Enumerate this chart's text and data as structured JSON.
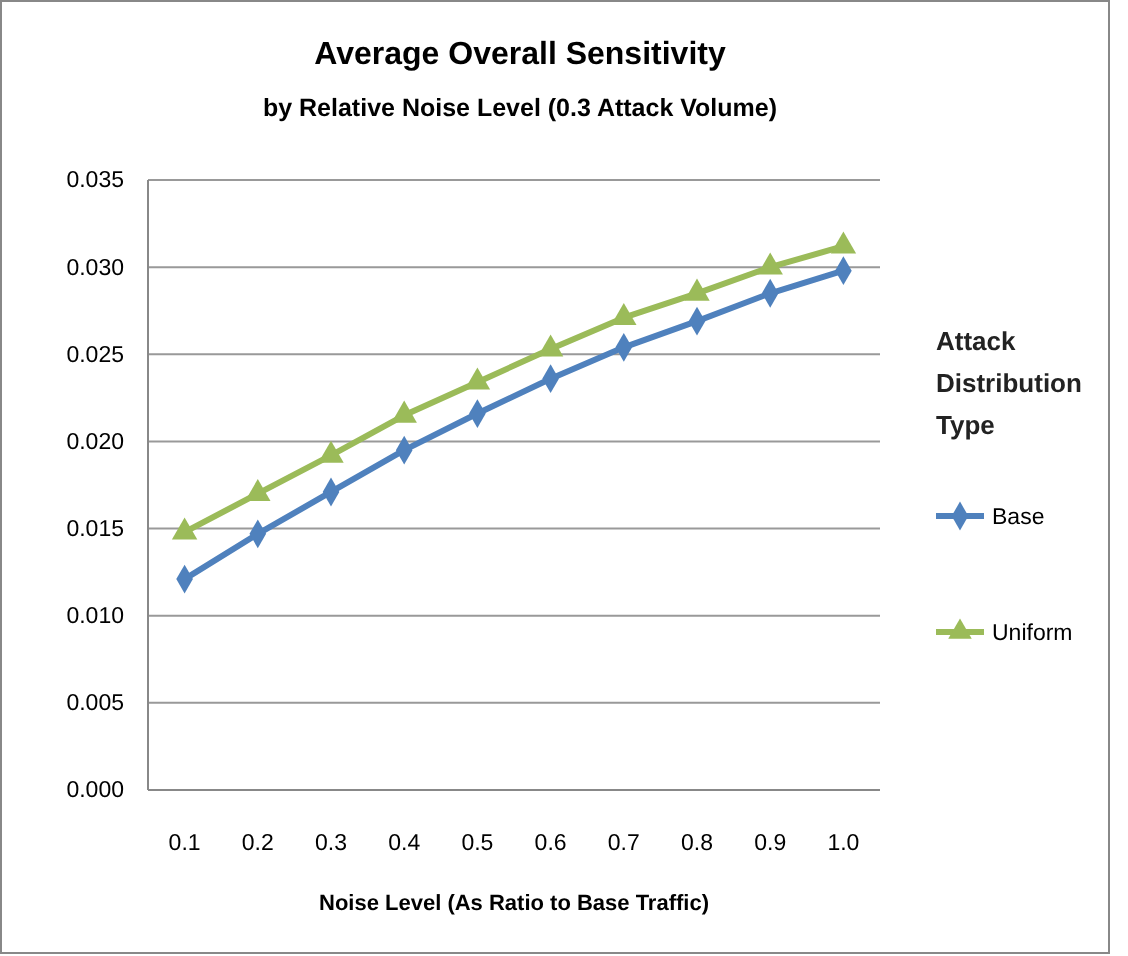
{
  "chart_data": {
    "type": "line",
    "title": "Average Overall Sensitivity",
    "subtitle": "by Relative Noise Level (0.3 Attack Volume)",
    "xlabel": "Noise Level (As Ratio to Base  Traffic)",
    "legend_title": "Attack Distribution Type",
    "categories": [
      "0.1",
      "0.2",
      "0.3",
      "0.4",
      "0.5",
      "0.6",
      "0.7",
      "0.8",
      "0.9",
      "1.0"
    ],
    "series": [
      {
        "name": "Base",
        "color": "#4f81bd",
        "marker": "diamond",
        "values": [
          0.0121,
          0.0147,
          0.0171,
          0.0195,
          0.0216,
          0.0236,
          0.0254,
          0.0269,
          0.0285,
          0.0298
        ]
      },
      {
        "name": "Uniform",
        "color": "#9bbb59",
        "marker": "triangle",
        "values": [
          0.0148,
          0.017,
          0.0192,
          0.0215,
          0.0234,
          0.0253,
          0.0271,
          0.0285,
          0.03,
          0.0312
        ]
      }
    ],
    "ylim": [
      0,
      0.035
    ],
    "yticks": [
      {
        "value": 0,
        "label": "0.000"
      },
      {
        "value": 0.005,
        "label": "0.005"
      },
      {
        "value": 0.01,
        "label": "0.010"
      },
      {
        "value": 0.015,
        "label": "0.015"
      },
      {
        "value": 0.02,
        "label": "0.020"
      },
      {
        "value": 0.025,
        "label": "0.025"
      },
      {
        "value": 0.03,
        "label": "0.030"
      },
      {
        "value": 0.035,
        "label": "0.035"
      }
    ],
    "grid": "y",
    "legend": "right"
  }
}
